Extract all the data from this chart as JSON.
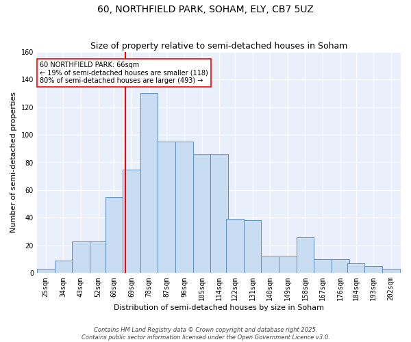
{
  "title_line1": "60, NORTHFIELD PARK, SOHAM, ELY, CB7 5UZ",
  "title_line2": "Size of property relative to semi-detached houses in Soham",
  "xlabel": "Distribution of semi-detached houses by size in Soham",
  "ylabel": "Number of semi-detached properties",
  "categories": [
    25,
    34,
    43,
    52,
    60,
    69,
    78,
    87,
    96,
    105,
    114,
    122,
    131,
    140,
    149,
    158,
    167,
    176,
    184,
    193,
    202
  ],
  "heights": [
    3,
    9,
    23,
    23,
    55,
    75,
    130,
    95,
    95,
    86,
    86,
    39,
    38,
    12,
    12,
    26,
    10,
    10,
    7,
    5,
    3
  ],
  "bar_color": "#c9ddf2",
  "bar_edge_color": "#5b8ec4",
  "red_line_x": 66,
  "annotation_text": "60 NORTHFIELD PARK: 66sqm\n← 19% of semi-detached houses are smaller (118)\n80% of semi-detached houses are larger (493) →",
  "footer_line1": "Contains HM Land Registry data © Crown copyright and database right 2025.",
  "footer_line2": "Contains public sector information licensed under the Open Government Licence v3.0.",
  "ylim": [
    0,
    160
  ],
  "yticks": [
    0,
    20,
    40,
    60,
    80,
    100,
    120,
    140,
    160
  ],
  "bg_color": "#eaf0fb",
  "grid_color": "#ffffff",
  "title_fontsize": 10,
  "subtitle_fontsize": 9,
  "axis_label_fontsize": 8,
  "tick_fontsize": 7,
  "annotation_fontsize": 7,
  "footer_fontsize": 6
}
